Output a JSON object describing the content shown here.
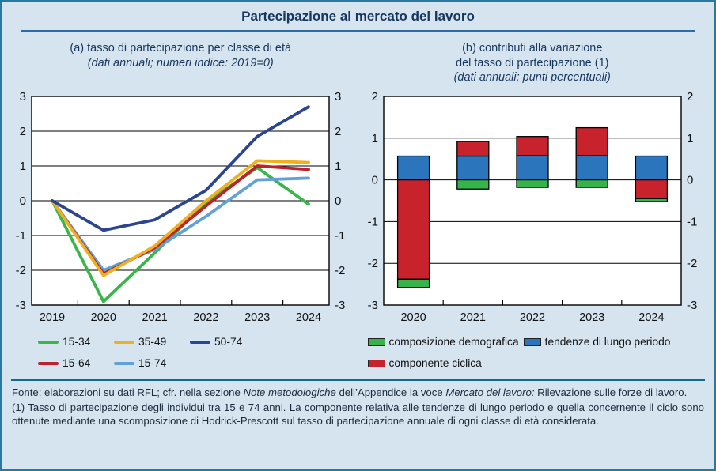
{
  "figure": {
    "title": "Partecipazione al mercato del lavoro"
  },
  "panel_a": {
    "title_lines": [
      "(a) tasso di partecipazione per classe di età"
    ],
    "subtitle": "(dati annuali; numeri indice: 2019=0)"
  },
  "panel_b": {
    "title_lines": [
      "(b) contributi alla variazione",
      "del tasso di partecipazione (1)"
    ],
    "subtitle": "(dati annuali; punti percentuali)"
  },
  "chart_data": [
    {
      "type": "line",
      "panel": "a",
      "title": "(a) tasso di partecipazione per classe di età",
      "subtitle": "(dati annuali; numeri indice: 2019=0)",
      "categories": [
        "2019",
        "2020",
        "2021",
        "2022",
        "2023",
        "2024"
      ],
      "series": [
        {
          "name": "15-34",
          "color": "#3ab54a",
          "values": [
            0,
            -2.9,
            -1.5,
            -0.05,
            0.95,
            -0.1
          ]
        },
        {
          "name": "35-49",
          "color": "#eeb01c",
          "values": [
            0,
            -2.15,
            -1.3,
            0.0,
            1.15,
            1.1
          ]
        },
        {
          "name": "50-74",
          "color": "#2b4590",
          "values": [
            0,
            -0.85,
            -0.55,
            0.3,
            1.85,
            2.7
          ]
        },
        {
          "name": "15-64",
          "color": "#c0202a",
          "values": [
            0,
            -2.1,
            -1.35,
            -0.15,
            1.0,
            0.9
          ]
        },
        {
          "name": "15-74",
          "color": "#61a1d8",
          "values": [
            0,
            -2.0,
            -1.4,
            -0.45,
            0.6,
            0.65
          ]
        }
      ],
      "ylim": [
        -3,
        3
      ],
      "yticks": [
        3,
        2,
        1,
        0,
        -1,
        -2,
        -3
      ],
      "grid": true,
      "axis_labels_both_sides": true,
      "legend_position": "bottom"
    },
    {
      "type": "bar",
      "stacked": true,
      "panel": "b",
      "title": "(b) contributi alla variazione del tasso di partecipazione (1)",
      "subtitle": "(dati annuali; punti percentuali)",
      "categories": [
        "2020",
        "2021",
        "2022",
        "2023",
        "2024"
      ],
      "series": [
        {
          "name": "tendenze di lungo periodo",
          "color": "#2a75bb",
          "values": [
            0.57,
            0.57,
            0.58,
            0.58,
            0.57
          ]
        },
        {
          "name": "componente ciclica",
          "color": "#c8232c",
          "values": [
            -2.38,
            0.35,
            0.46,
            0.67,
            -0.45
          ]
        },
        {
          "name": "composizione demografica",
          "color": "#36b44a",
          "values": [
            -0.2,
            -0.22,
            -0.18,
            -0.18,
            -0.07
          ]
        }
      ],
      "ylim": [
        -3,
        2
      ],
      "yticks": [
        2,
        1,
        0,
        -1,
        -2,
        -3
      ],
      "grid": true,
      "axis_labels_both_sides": true,
      "legend_position": "bottom"
    }
  ],
  "legend_a": {
    "swatch": "line",
    "items": [
      {
        "label": "15-34",
        "color": "#3ab54a"
      },
      {
        "label": "35-49",
        "color": "#eeb01c"
      },
      {
        "label": "50-74",
        "color": "#2b4590"
      },
      {
        "label": "15-64",
        "color": "#c0202a"
      },
      {
        "label": "15-74",
        "color": "#61a1d8"
      }
    ]
  },
  "legend_b": {
    "swatch": "rect",
    "items": [
      {
        "label": "composizione demografica",
        "color": "#36b44a"
      },
      {
        "label": "tendenze di lungo periodo",
        "color": "#2a75bb"
      },
      {
        "label": "componente ciclica",
        "color": "#c8232c"
      }
    ]
  },
  "footer": {
    "fonte_parts": [
      {
        "text": "Fonte: elaborazioni su dati RFL; cfr. nella sezione ",
        "italic": false
      },
      {
        "text": "Note metodologiche",
        "italic": true
      },
      {
        "text": " dell’Appendice la voce ",
        "italic": false
      },
      {
        "text": "Mercato del lavoro:",
        "italic": true
      },
      {
        "text": " Rilevazione sulle forze di lavoro.",
        "italic": false
      }
    ],
    "note": "(1) Tasso di partecipazione degli individui tra 15 e 74 anni. La componente relativa alle tendenze di lungo periodo e quella concernente il ciclo sono ottenute mediante una scomposizione di Hodrick-Prescott sul tasso di partecipazione annuale di ogni classe di età considerata."
  },
  "colors": {
    "background": "#d6e4ef",
    "frame_border": "#2878a0",
    "title_text": "#17375e",
    "title_rule": "#2d6da3",
    "footer_rule": "#0c6c90",
    "axis_text": "#111111",
    "footer_text": "#1a2b3c",
    "plot_background": "#ffffff",
    "plot_frame": "#000000"
  }
}
